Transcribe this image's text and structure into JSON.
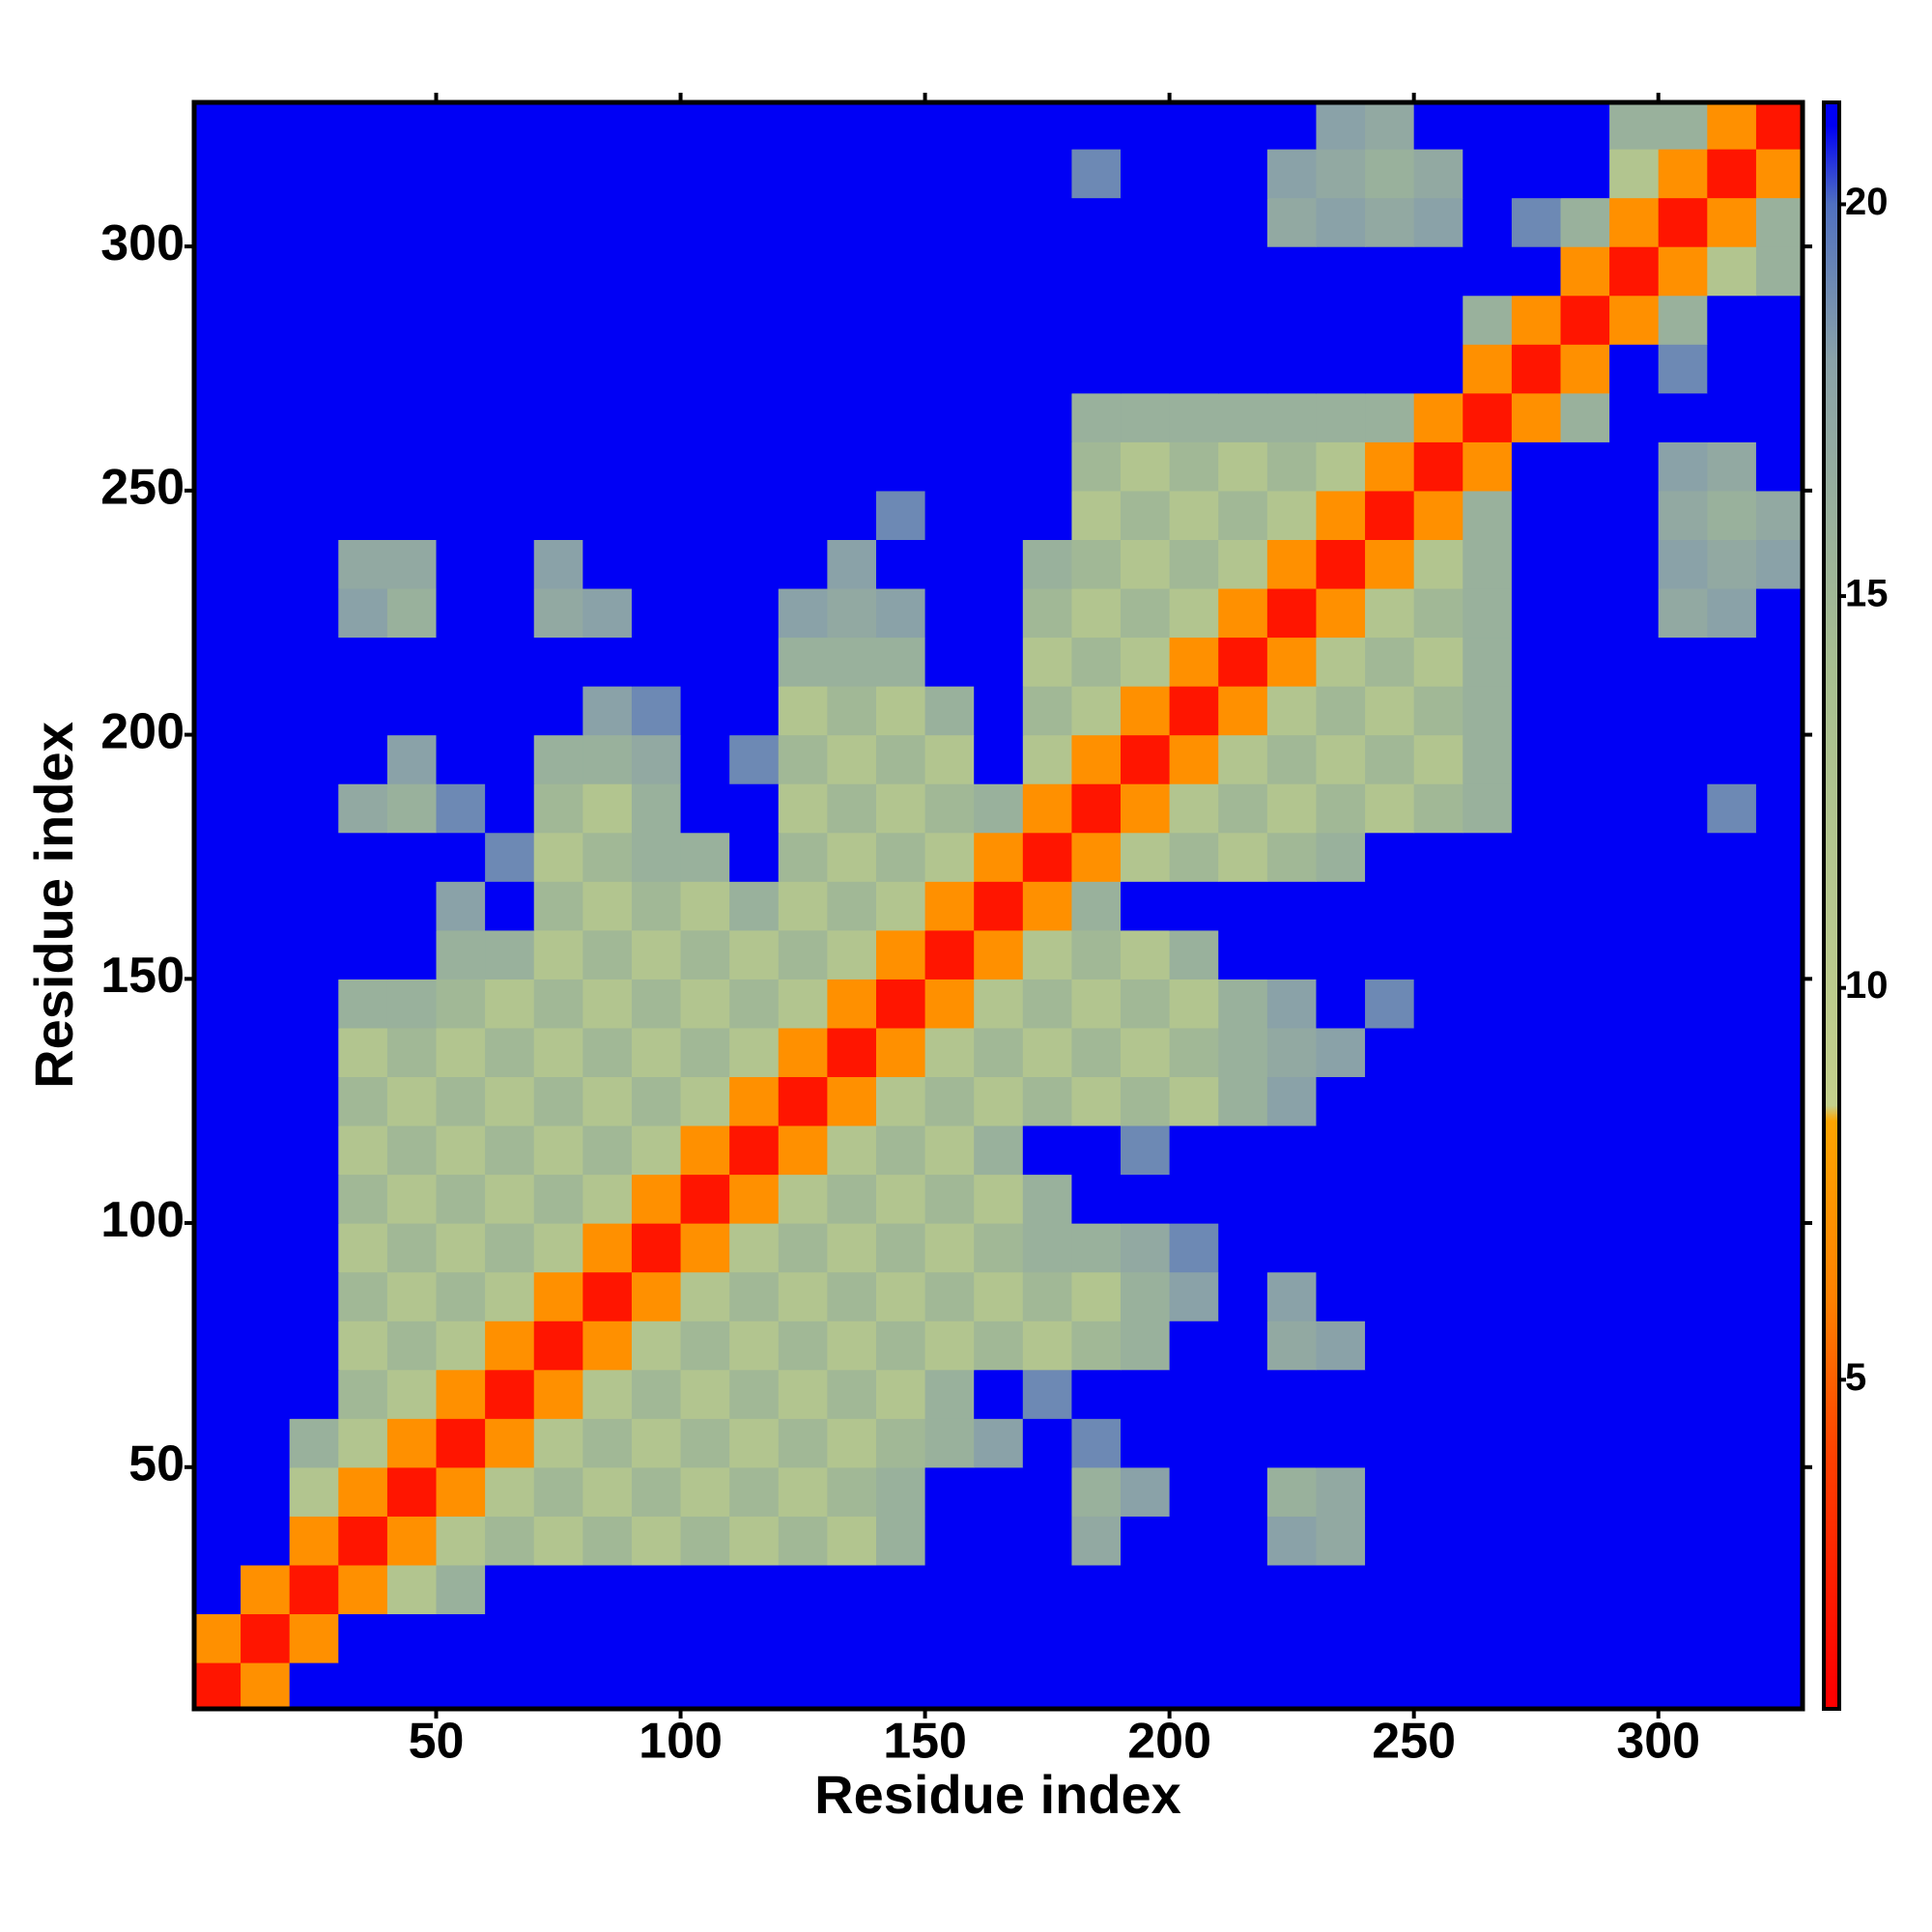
{
  "chart_data": {
    "type": "heatmap",
    "x_label": "Residue index",
    "y_label": "Residue index",
    "x": [
      5,
      15,
      25,
      35,
      45,
      55,
      65,
      75,
      85,
      95,
      105,
      115,
      125,
      135,
      145,
      155,
      165,
      175,
      185,
      195,
      205,
      215,
      225,
      235,
      245,
      255,
      265,
      275,
      285,
      295,
      305,
      315,
      325
    ],
    "y": [
      5,
      15,
      25,
      35,
      45,
      55,
      65,
      75,
      85,
      95,
      105,
      115,
      125,
      135,
      145,
      155,
      165,
      175,
      185,
      195,
      205,
      215,
      225,
      235,
      245,
      255,
      265,
      275,
      285,
      295,
      305,
      315,
      325
    ],
    "xlim": [
      0.5,
      329.5
    ],
    "ylim": [
      0.5,
      329.5
    ],
    "xticks": [
      50,
      100,
      150,
      200,
      250,
      300
    ],
    "yticks": [
      50,
      100,
      150,
      200,
      250,
      300
    ],
    "zlim": [
      0.8,
      21.3
    ],
    "colorbar_ticks": [
      5,
      10,
      15,
      20
    ],
    "colorscale": [
      [
        1,
        "#ff0000"
      ],
      [
        4,
        "#ff4000"
      ],
      [
        6,
        "#ff8000"
      ],
      [
        8.3,
        "#ffa500"
      ],
      [
        8.5,
        "#c4d08c"
      ],
      [
        14,
        "#a8bf90"
      ],
      [
        18,
        "#8aa2a8"
      ],
      [
        20,
        "#5070c0"
      ],
      [
        21,
        "#0000f5"
      ]
    ],
    "z": [
      [
        2,
        7,
        21,
        21,
        21,
        21,
        21,
        21,
        21,
        21,
        21,
        21,
        21,
        21,
        21,
        21,
        21,
        21,
        21,
        21,
        21,
        21,
        21,
        21,
        21,
        21,
        21,
        21,
        21,
        21,
        21,
        21,
        21
      ],
      [
        7,
        2,
        7,
        21,
        21,
        21,
        21,
        21,
        21,
        21,
        21,
        21,
        21,
        21,
        21,
        21,
        21,
        21,
        21,
        21,
        21,
        21,
        21,
        21,
        21,
        21,
        21,
        21,
        21,
        21,
        21,
        21,
        21
      ],
      [
        21,
        7,
        2,
        7,
        12,
        16,
        21,
        21,
        21,
        21,
        21,
        21,
        21,
        21,
        21,
        21,
        21,
        21,
        21,
        21,
        21,
        21,
        21,
        21,
        21,
        21,
        21,
        21,
        21,
        21,
        21,
        21,
        21
      ],
      [
        21,
        21,
        7,
        2,
        7,
        12,
        15,
        12,
        15,
        12,
        15,
        12,
        15,
        12,
        16,
        21,
        21,
        21,
        17,
        21,
        21,
        21,
        18,
        17,
        21,
        21,
        21,
        21,
        21,
        21,
        21,
        21,
        21
      ],
      [
        21,
        21,
        12,
        7,
        2,
        7,
        12,
        15,
        12,
        15,
        12,
        15,
        12,
        15,
        16,
        21,
        21,
        21,
        16,
        18,
        21,
        21,
        16,
        17,
        21,
        21,
        21,
        21,
        21,
        21,
        21,
        21,
        21
      ],
      [
        21,
        21,
        16,
        12,
        7,
        2,
        7,
        12,
        15,
        12,
        15,
        12,
        15,
        12,
        15,
        16,
        18,
        21,
        19,
        21,
        21,
        21,
        21,
        21,
        21,
        21,
        21,
        21,
        21,
        21,
        21,
        21,
        21
      ],
      [
        21,
        21,
        21,
        15,
        12,
        7,
        2,
        7,
        12,
        15,
        12,
        15,
        12,
        15,
        12,
        16,
        21,
        19,
        21,
        21,
        21,
        21,
        21,
        21,
        21,
        21,
        21,
        21,
        21,
        21,
        21,
        21,
        21
      ],
      [
        21,
        21,
        21,
        12,
        15,
        12,
        7,
        2,
        7,
        12,
        15,
        12,
        15,
        12,
        15,
        12,
        15,
        12,
        15,
        16,
        21,
        21,
        17,
        18,
        21,
        21,
        21,
        21,
        21,
        21,
        21,
        21,
        21
      ],
      [
        21,
        21,
        21,
        15,
        12,
        15,
        12,
        7,
        2,
        7,
        12,
        15,
        12,
        15,
        12,
        15,
        12,
        15,
        12,
        16,
        18,
        21,
        18,
        21,
        21,
        21,
        21,
        21,
        21,
        21,
        21,
        21,
        21
      ],
      [
        21,
        21,
        21,
        12,
        15,
        12,
        15,
        12,
        7,
        2,
        7,
        12,
        15,
        12,
        15,
        12,
        15,
        16,
        16,
        17,
        19,
        21,
        21,
        21,
        21,
        21,
        21,
        21,
        21,
        21,
        21,
        21,
        21
      ],
      [
        21,
        21,
        21,
        15,
        12,
        15,
        12,
        15,
        12,
        7,
        2,
        7,
        12,
        15,
        12,
        15,
        12,
        16,
        21,
        21,
        21,
        21,
        21,
        21,
        21,
        21,
        21,
        21,
        21,
        21,
        21,
        21,
        21
      ],
      [
        21,
        21,
        21,
        12,
        15,
        12,
        15,
        12,
        15,
        12,
        7,
        2,
        7,
        12,
        15,
        12,
        16,
        21,
        21,
        19,
        21,
        21,
        21,
        21,
        21,
        21,
        21,
        21,
        21,
        21,
        21,
        21,
        21
      ],
      [
        21,
        21,
        21,
        15,
        12,
        15,
        12,
        15,
        12,
        15,
        12,
        7,
        2,
        7,
        12,
        15,
        12,
        15,
        12,
        15,
        12,
        16,
        18,
        21,
        21,
        21,
        21,
        21,
        21,
        21,
        21,
        21,
        21
      ],
      [
        21,
        21,
        21,
        12,
        15,
        12,
        15,
        12,
        15,
        12,
        15,
        12,
        7,
        2,
        7,
        12,
        15,
        12,
        15,
        12,
        15,
        16,
        17,
        18,
        21,
        21,
        21,
        21,
        21,
        21,
        21,
        21,
        21
      ],
      [
        21,
        21,
        21,
        16,
        16,
        15,
        12,
        15,
        12,
        15,
        12,
        15,
        12,
        7,
        2,
        7,
        12,
        15,
        12,
        15,
        12,
        16,
        18,
        21,
        19,
        21,
        21,
        21,
        21,
        21,
        21,
        21,
        21
      ],
      [
        21,
        21,
        21,
        21,
        21,
        16,
        16,
        12,
        15,
        12,
        15,
        12,
        15,
        12,
        7,
        2,
        7,
        12,
        15,
        12,
        16,
        21,
        21,
        21,
        21,
        21,
        21,
        21,
        21,
        21,
        21,
        21,
        21
      ],
      [
        21,
        21,
        21,
        21,
        21,
        18,
        21,
        15,
        12,
        15,
        12,
        16,
        12,
        15,
        12,
        7,
        2,
        7,
        16,
        21,
        21,
        21,
        21,
        21,
        21,
        21,
        21,
        21,
        21,
        21,
        21,
        21,
        21
      ],
      [
        21,
        21,
        21,
        21,
        21,
        21,
        19,
        12,
        15,
        16,
        16,
        21,
        15,
        12,
        15,
        12,
        7,
        2,
        7,
        12,
        15,
        12,
        15,
        16,
        21,
        21,
        21,
        21,
        21,
        21,
        21,
        21,
        21
      ],
      [
        21,
        21,
        21,
        17,
        16,
        19,
        21,
        15,
        12,
        16,
        21,
        21,
        12,
        15,
        12,
        15,
        16,
        7,
        2,
        7,
        12,
        15,
        12,
        15,
        12,
        15,
        16,
        21,
        21,
        21,
        21,
        19,
        21
      ],
      [
        21,
        21,
        21,
        21,
        18,
        21,
        21,
        16,
        16,
        17,
        21,
        19,
        15,
        12,
        15,
        12,
        21,
        12,
        7,
        2,
        7,
        12,
        15,
        12,
        15,
        12,
        16,
        21,
        21,
        21,
        21,
        21,
        21
      ],
      [
        21,
        21,
        21,
        21,
        21,
        21,
        21,
        21,
        18,
        19,
        21,
        21,
        12,
        15,
        12,
        16,
        21,
        15,
        12,
        7,
        2,
        7,
        12,
        15,
        12,
        15,
        16,
        21,
        21,
        21,
        21,
        21,
        21
      ],
      [
        21,
        21,
        21,
        21,
        21,
        21,
        21,
        21,
        21,
        21,
        21,
        21,
        16,
        16,
        16,
        21,
        21,
        12,
        15,
        12,
        7,
        2,
        7,
        12,
        15,
        12,
        16,
        21,
        21,
        21,
        21,
        21,
        21
      ],
      [
        21,
        21,
        21,
        18,
        16,
        21,
        21,
        17,
        18,
        21,
        21,
        21,
        18,
        17,
        18,
        21,
        21,
        15,
        12,
        15,
        12,
        7,
        2,
        7,
        12,
        15,
        16,
        21,
        21,
        21,
        17,
        18,
        21
      ],
      [
        21,
        21,
        21,
        17,
        17,
        21,
        21,
        18,
        21,
        21,
        21,
        21,
        21,
        18,
        21,
        21,
        21,
        16,
        15,
        12,
        15,
        12,
        7,
        2,
        7,
        12,
        16,
        21,
        21,
        21,
        18,
        17,
        18
      ],
      [
        21,
        21,
        21,
        21,
        21,
        21,
        21,
        21,
        21,
        21,
        21,
        21,
        21,
        21,
        19,
        21,
        21,
        21,
        12,
        15,
        12,
        15,
        12,
        7,
        2,
        7,
        16,
        21,
        21,
        21,
        17,
        16,
        17
      ],
      [
        21,
        21,
        21,
        21,
        21,
        21,
        21,
        21,
        21,
        21,
        21,
        21,
        21,
        21,
        21,
        21,
        21,
        21,
        15,
        12,
        15,
        12,
        15,
        12,
        7,
        2,
        7,
        21,
        21,
        21,
        18,
        17,
        21
      ],
      [
        21,
        21,
        21,
        21,
        21,
        21,
        21,
        21,
        21,
        21,
        21,
        21,
        21,
        21,
        21,
        21,
        21,
        21,
        16,
        16,
        16,
        16,
        16,
        16,
        16,
        7,
        2,
        7,
        16,
        21,
        21,
        21,
        21
      ],
      [
        21,
        21,
        21,
        21,
        21,
        21,
        21,
        21,
        21,
        21,
        21,
        21,
        21,
        21,
        21,
        21,
        21,
        21,
        21,
        21,
        21,
        21,
        21,
        21,
        21,
        21,
        7,
        2,
        7,
        21,
        19,
        21,
        21
      ],
      [
        21,
        21,
        21,
        21,
        21,
        21,
        21,
        21,
        21,
        21,
        21,
        21,
        21,
        21,
        21,
        21,
        21,
        21,
        21,
        21,
        21,
        21,
        21,
        21,
        21,
        21,
        16,
        7,
        2,
        7,
        16,
        21,
        21
      ],
      [
        21,
        21,
        21,
        21,
        21,
        21,
        21,
        21,
        21,
        21,
        21,
        21,
        21,
        21,
        21,
        21,
        21,
        21,
        21,
        21,
        21,
        21,
        21,
        21,
        21,
        21,
        21,
        21,
        7,
        2,
        7,
        12,
        16
      ],
      [
        21,
        21,
        21,
        21,
        21,
        21,
        21,
        21,
        21,
        21,
        21,
        21,
        21,
        21,
        21,
        21,
        21,
        21,
        21,
        21,
        21,
        21,
        17,
        18,
        17,
        18,
        21,
        19,
        16,
        7,
        2,
        7,
        16
      ],
      [
        21,
        21,
        21,
        21,
        21,
        21,
        21,
        21,
        21,
        21,
        21,
        21,
        21,
        21,
        21,
        21,
        21,
        21,
        19,
        21,
        21,
        21,
        18,
        17,
        16,
        17,
        21,
        21,
        21,
        12,
        7,
        2,
        7
      ],
      [
        21,
        21,
        21,
        21,
        21,
        21,
        21,
        21,
        21,
        21,
        21,
        21,
        21,
        21,
        21,
        21,
        21,
        21,
        21,
        21,
        21,
        21,
        21,
        18,
        17,
        21,
        21,
        21,
        21,
        16,
        16,
        7,
        2
      ]
    ]
  }
}
